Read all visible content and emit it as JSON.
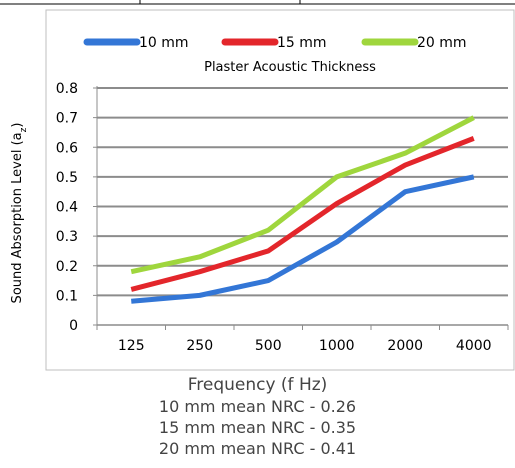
{
  "chart_data": {
    "type": "line",
    "subtitle": "Plaster Acoustic  Thickness",
    "xlabel": "Frequency (f Hz)",
    "ylabel": "Sound Absorption Level (a",
    "ylabel_sub": "z",
    "ylabel_close": ")",
    "categories": [
      "125",
      "250",
      "500",
      "1000",
      "2000",
      "4000"
    ],
    "ylim": [
      0,
      0.8
    ],
    "yticks": [
      "0",
      "0.1",
      "0.2",
      "0.3",
      "0.4",
      "0.5",
      "0.6",
      "0.7",
      "0.8"
    ],
    "grid": true,
    "legend_position": "top",
    "series": [
      {
        "name": "10 mm",
        "color": "#3376d6",
        "values": [
          0.08,
          0.1,
          0.15,
          0.28,
          0.45,
          0.5
        ]
      },
      {
        "name": "15 mm",
        "color": "#e3262b",
        "values": [
          0.12,
          0.18,
          0.25,
          0.41,
          0.54,
          0.63
        ]
      },
      {
        "name": "20 mm",
        "color": "#9fd63d",
        "values": [
          0.18,
          0.23,
          0.32,
          0.5,
          0.58,
          0.7
        ]
      }
    ]
  },
  "notes": [
    "10 mm mean NRC - 0.26",
    "15 mm mean NRC - 0.35",
    "20 mm mean NRC - 0.41"
  ]
}
